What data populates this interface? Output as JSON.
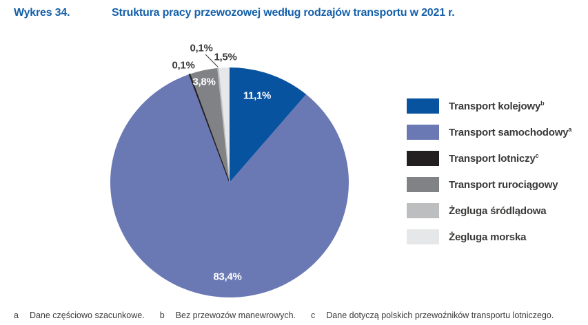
{
  "header": {
    "label": "Wykres 34.",
    "title": "Struktura pracy przewozowej według rodzajów transportu w 2021 r."
  },
  "chart_data": {
    "type": "pie",
    "title": "Struktura pracy przewozowej według rodzajów transportu w 2021 r.",
    "unit": "%",
    "start_angle_deg": 0,
    "direction": "clockwise",
    "legend_position": "right",
    "value_format": "comma-decimal",
    "slices": [
      {
        "name": "Transport kolejowy",
        "sup": "b",
        "value": 11.1,
        "label": "11,1%",
        "color": "#0853A0",
        "label_color": "#ffffff"
      },
      {
        "name": "Transport samochodowy",
        "sup": "a",
        "value": 83.4,
        "label": "83,4%",
        "color": "#6A79B4",
        "label_color": "#ffffff"
      },
      {
        "name": "Transport lotniczy",
        "sup": "c",
        "value": 0.1,
        "label": "0,1%",
        "color": "#231F20",
        "label_color": "#3A3A39"
      },
      {
        "name": "Transport rurociągowy",
        "sup": "",
        "value": 3.8,
        "label": "3,8%",
        "color": "#808285",
        "label_color": "#ffffff"
      },
      {
        "name": "Żegluga śródlądowa",
        "sup": "",
        "value": 0.1,
        "label": "0,1%",
        "color": "#BCBEC0",
        "label_color": "#3A3A39"
      },
      {
        "name": "Żegluga morska",
        "sup": "",
        "value": 1.5,
        "label": "1,5%",
        "color": "#E6E7E8",
        "label_color": "#3A3A39"
      }
    ]
  },
  "footnotes": [
    {
      "marker": "a",
      "text": "Dane częściowo szacunkowe."
    },
    {
      "marker": "b",
      "text": "Bez przewozów manewrowych."
    },
    {
      "marker": "c",
      "text": "Dane dotyczą polskich przewoźników transportu lotniczego."
    }
  ],
  "colors": {
    "title_blue": "#1460AA",
    "text_dark": "#3A3A39"
  }
}
